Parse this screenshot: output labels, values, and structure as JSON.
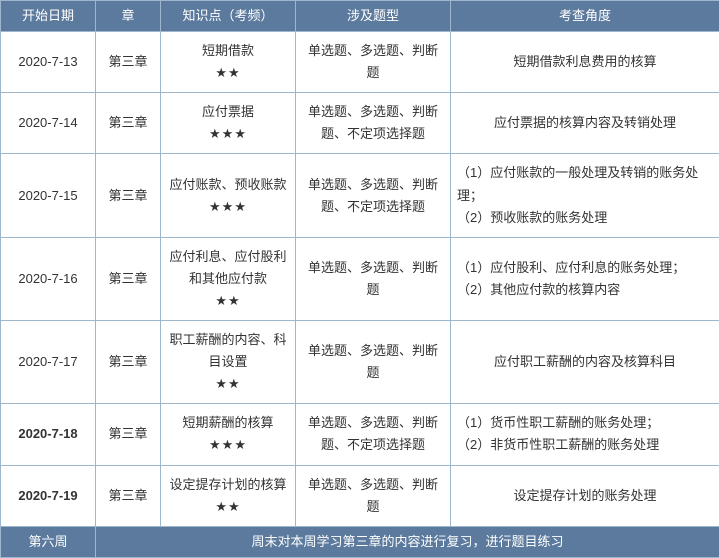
{
  "headers": {
    "date": "开始日期",
    "chapter": "章",
    "topic": "知识点（考频）",
    "qtype": "涉及题型",
    "angle": "考查角度"
  },
  "rows": [
    {
      "date": "2020-7-13",
      "date_bold": false,
      "chapter": "第三章",
      "topic": "短期借款",
      "stars": "★★",
      "qtype": "单选题、多选题、判断题",
      "angle": "短期借款利息费用的核算"
    },
    {
      "date": "2020-7-14",
      "date_bold": false,
      "chapter": "第三章",
      "topic": "应付票据",
      "stars": "★★★",
      "qtype": "单选题、多选题、判断题、不定项选择题",
      "angle": "应付票据的核算内容及转销处理"
    },
    {
      "date": "2020-7-15",
      "date_bold": false,
      "chapter": "第三章",
      "topic": "应付账款、预收账款",
      "stars": "★★★",
      "qtype": "单选题、多选题、判断题、不定项选择题",
      "angle": "（1）应付账款的一般处理及转销的账务处理；\n（2）预收账款的账务处理"
    },
    {
      "date": "2020-7-16",
      "date_bold": false,
      "chapter": "第三章",
      "topic": "应付利息、应付股利和其他应付款",
      "stars": "★★",
      "qtype": "单选题、多选题、判断题",
      "angle": "（1）应付股利、应付利息的账务处理；\n（2）其他应付款的核算内容"
    },
    {
      "date": "2020-7-17",
      "date_bold": false,
      "chapter": "第三章",
      "topic": "职工薪酬的内容、科目设置",
      "stars": "★★",
      "qtype": "单选题、多选题、判断题",
      "angle": "应付职工薪酬的内容及核算科目"
    },
    {
      "date": "2020-7-18",
      "date_bold": true,
      "chapter": "第三章",
      "topic": "短期薪酬的核算",
      "stars": "★★★",
      "qtype": "单选题、多选题、判断题、不定项选择题",
      "angle": "（1）货币性职工薪酬的账务处理；\n（2）非货币性职工薪酬的账务处理"
    },
    {
      "date": "2020-7-19",
      "date_bold": true,
      "chapter": "第三章",
      "topic": "设定提存计划的核算",
      "stars": "★★",
      "qtype": "单选题、多选题、判断题",
      "angle": "设定提存计划的账务处理"
    }
  ],
  "footer": {
    "week": "第六周",
    "note": "周末对本周学习第三章的内容进行复习，进行题目练习"
  },
  "colors": {
    "header_bg": "#5b7a9d",
    "header_fg": "#ffffff",
    "border": "#9fb7cc",
    "cell_bg": "#ffffff",
    "cell_fg": "#333333"
  }
}
